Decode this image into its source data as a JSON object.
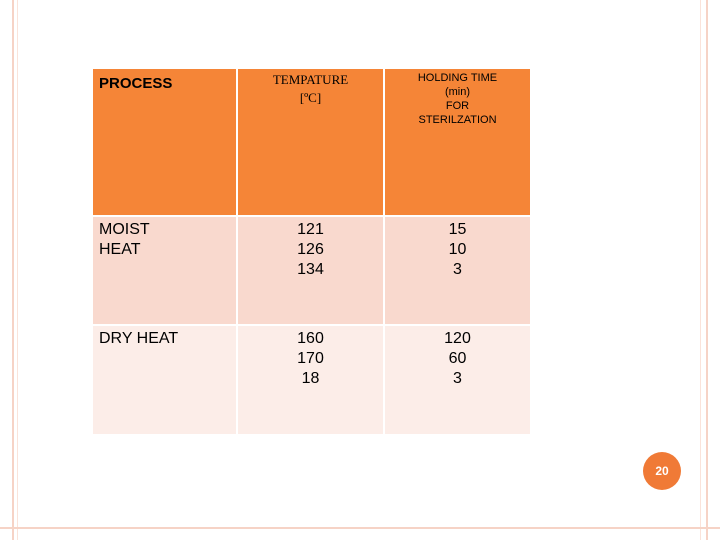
{
  "table": {
    "headers": {
      "process": "PROCESS",
      "temperature": [
        "TEMPATURE",
        "[ºC]"
      ],
      "holding_time": [
        "HOLDING TIME",
        "(min)",
        "FOR",
        "STERILZATION"
      ]
    },
    "rows": [
      {
        "process": [
          "MOIST",
          "HEAT"
        ],
        "temperature": [
          "121",
          "126",
          "134"
        ],
        "holding_time": [
          "15",
          "10",
          "3"
        ]
      },
      {
        "process": [
          "DRY HEAT"
        ],
        "temperature": [
          "160",
          "170",
          "18"
        ],
        "holding_time": [
          "120",
          "60",
          "3"
        ]
      }
    ]
  },
  "page_number": "20",
  "colors": {
    "header_bg": "#f58537",
    "row1_bg": "#f9d9ce",
    "row2_bg": "#fcede8",
    "badge": "#f07a36",
    "frame": "#f6d3c6"
  }
}
